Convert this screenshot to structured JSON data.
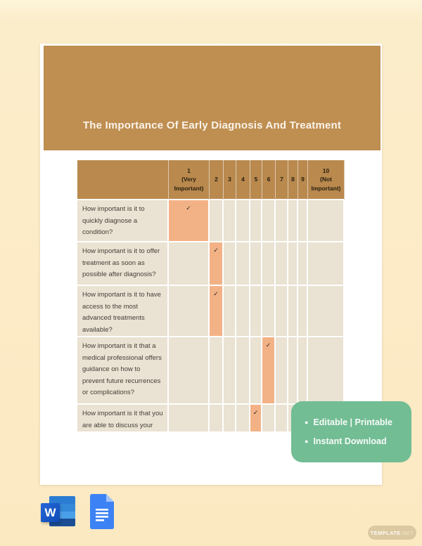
{
  "document": {
    "title": "The Importance Of Early Diagnosis And Treatment"
  },
  "table": {
    "headers": [
      "",
      "1\n(Very\nImportant)",
      "2",
      "3",
      "4",
      "5",
      "6",
      "7",
      "8",
      "9",
      "10\n(Not\nImportant)"
    ],
    "check_glyph": "✓",
    "rows": [
      {
        "question": "How important is it to quickly diagnose a condition?",
        "selected": 1
      },
      {
        "question": "How important is it to offer treatment as soon as possible after diagnosis?",
        "selected": 2
      },
      {
        "question": "How important is it to have access to the most advanced treatments available?",
        "selected": 2
      },
      {
        "question": "How important is it that a medical professional offers guidance on how to prevent future recurrences or complications?",
        "selected": 6
      },
      {
        "question": "How important is it that you are able to discuss your",
        "selected": 5
      }
    ]
  },
  "badge": {
    "bullet": "●",
    "items": [
      "Editable | Printable",
      "Instant Download"
    ]
  },
  "footer": {
    "word_letter": "W",
    "watermark": {
      "brand": "TEMPLATE",
      "tld": ".NET"
    }
  },
  "colors": {
    "background": "#fcedca",
    "page": "#ffffff",
    "header_band": "#bf8e51",
    "table_header": "#b9894e",
    "cell": "#eae2d2",
    "highlight": "#f3b286",
    "badge": "#72bd94",
    "watermark_pill": "#dcc9a2",
    "word_blue": "#2b7cd3",
    "docs_blue": "#3c82f4"
  }
}
